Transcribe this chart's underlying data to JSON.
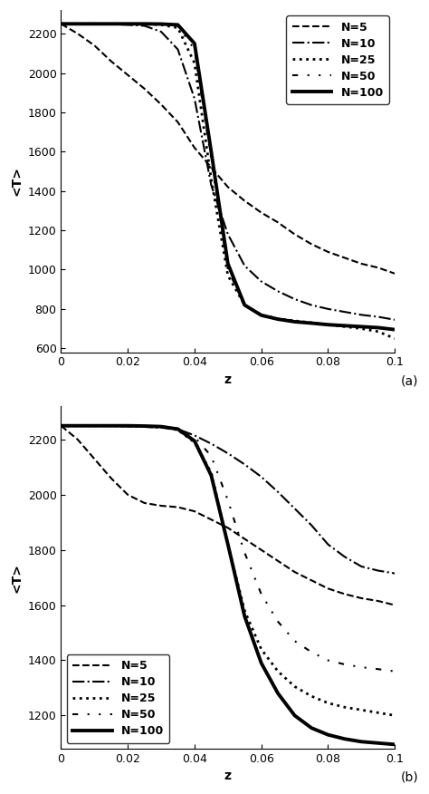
{
  "background_color": "#ffffff",
  "subplots": [
    {
      "label": "(a)",
      "ylabel": "<T>",
      "xlabel": "z",
      "xlim": [
        0,
        0.1
      ],
      "ylim": [
        580,
        2320
      ],
      "yticks": [
        600,
        800,
        1000,
        1200,
        1400,
        1600,
        1800,
        2000,
        2200
      ],
      "xticks": [
        0,
        0.02,
        0.04,
        0.06,
        0.08,
        0.1
      ],
      "legend_loc": "upper right",
      "series": [
        {
          "label": "N=5",
          "style": "dashed",
          "linewidth": 1.5,
          "x": [
            0.0,
            0.005,
            0.01,
            0.015,
            0.02,
            0.025,
            0.03,
            0.035,
            0.04,
            0.045,
            0.05,
            0.055,
            0.06,
            0.065,
            0.07,
            0.075,
            0.08,
            0.085,
            0.09,
            0.095,
            0.1
          ],
          "y": [
            2250,
            2200,
            2140,
            2060,
            1990,
            1920,
            1840,
            1750,
            1620,
            1520,
            1420,
            1350,
            1290,
            1240,
            1180,
            1130,
            1090,
            1060,
            1030,
            1010,
            980
          ]
        },
        {
          "label": "N=10",
          "style": "dashdot",
          "linewidth": 1.5,
          "x": [
            0.0,
            0.005,
            0.01,
            0.015,
            0.02,
            0.025,
            0.03,
            0.035,
            0.04,
            0.045,
            0.05,
            0.055,
            0.06,
            0.065,
            0.07,
            0.075,
            0.08,
            0.085,
            0.09,
            0.095,
            0.1
          ],
          "y": [
            2250,
            2250,
            2250,
            2248,
            2245,
            2240,
            2210,
            2120,
            1870,
            1430,
            1180,
            1020,
            940,
            890,
            850,
            820,
            800,
            785,
            770,
            760,
            745
          ]
        },
        {
          "label": "N=25",
          "style": "dotted",
          "linewidth": 2.0,
          "x": [
            0.0,
            0.005,
            0.01,
            0.015,
            0.02,
            0.025,
            0.03,
            0.035,
            0.04,
            0.045,
            0.05,
            0.055,
            0.06,
            0.065,
            0.07,
            0.075,
            0.08,
            0.085,
            0.09,
            0.095,
            0.1
          ],
          "y": [
            2250,
            2250,
            2250,
            2250,
            2250,
            2249,
            2245,
            2230,
            2050,
            1460,
            970,
            820,
            770,
            750,
            740,
            730,
            720,
            710,
            700,
            685,
            650
          ]
        },
        {
          "label": "N=50",
          "style": "dashdotdotted",
          "linewidth": 1.5,
          "x": [
            0.0,
            0.005,
            0.01,
            0.015,
            0.02,
            0.025,
            0.03,
            0.035,
            0.04,
            0.045,
            0.05,
            0.055,
            0.06,
            0.065,
            0.07,
            0.075,
            0.08,
            0.085,
            0.09,
            0.095,
            0.1
          ],
          "y": [
            2250,
            2250,
            2250,
            2250,
            2250,
            2249,
            2248,
            2240,
            2120,
            1560,
            1000,
            820,
            770,
            750,
            738,
            730,
            720,
            715,
            710,
            705,
            695
          ]
        },
        {
          "label": "N=100",
          "style": "solid",
          "linewidth": 2.8,
          "x": [
            0.0,
            0.005,
            0.01,
            0.015,
            0.02,
            0.025,
            0.03,
            0.035,
            0.04,
            0.045,
            0.05,
            0.055,
            0.06,
            0.065,
            0.07,
            0.075,
            0.08,
            0.085,
            0.09,
            0.095,
            0.1
          ],
          "y": [
            2250,
            2250,
            2250,
            2250,
            2250,
            2250,
            2249,
            2245,
            2150,
            1600,
            1030,
            820,
            768,
            748,
            735,
            728,
            720,
            715,
            710,
            705,
            695
          ]
        }
      ]
    },
    {
      "label": "(b)",
      "ylabel": "<T>",
      "xlabel": "z",
      "xlim": [
        0,
        0.1
      ],
      "ylim": [
        1080,
        2320
      ],
      "yticks": [
        1200,
        1400,
        1600,
        1800,
        2000,
        2200
      ],
      "xticks": [
        0,
        0.02,
        0.04,
        0.06,
        0.08,
        0.1
      ],
      "legend_loc": "lower left",
      "series": [
        {
          "label": "N=5",
          "style": "dashed",
          "linewidth": 1.5,
          "x": [
            0.0,
            0.005,
            0.01,
            0.015,
            0.02,
            0.025,
            0.03,
            0.035,
            0.04,
            0.045,
            0.05,
            0.055,
            0.06,
            0.065,
            0.07,
            0.075,
            0.08,
            0.085,
            0.09,
            0.095,
            0.1
          ],
          "y": [
            2250,
            2200,
            2130,
            2060,
            2000,
            1970,
            1960,
            1955,
            1940,
            1910,
            1880,
            1840,
            1800,
            1760,
            1720,
            1690,
            1660,
            1640,
            1625,
            1615,
            1600
          ]
        },
        {
          "label": "N=10",
          "style": "dashdot",
          "linewidth": 1.5,
          "x": [
            0.0,
            0.005,
            0.01,
            0.015,
            0.02,
            0.025,
            0.03,
            0.035,
            0.04,
            0.045,
            0.05,
            0.055,
            0.06,
            0.065,
            0.07,
            0.075,
            0.08,
            0.085,
            0.09,
            0.095,
            0.1
          ],
          "y": [
            2250,
            2250,
            2250,
            2249,
            2248,
            2246,
            2243,
            2238,
            2215,
            2185,
            2150,
            2110,
            2065,
            2010,
            1950,
            1890,
            1820,
            1775,
            1740,
            1725,
            1715
          ]
        },
        {
          "label": "N=25",
          "style": "dotted",
          "linewidth": 2.0,
          "x": [
            0.0,
            0.005,
            0.01,
            0.015,
            0.02,
            0.025,
            0.03,
            0.035,
            0.04,
            0.045,
            0.05,
            0.055,
            0.06,
            0.065,
            0.07,
            0.075,
            0.08,
            0.085,
            0.09,
            0.095,
            0.1
          ],
          "y": [
            2250,
            2250,
            2250,
            2250,
            2249,
            2248,
            2245,
            2235,
            2190,
            2080,
            1820,
            1580,
            1440,
            1360,
            1305,
            1270,
            1245,
            1230,
            1220,
            1210,
            1200
          ]
        },
        {
          "label": "N=50",
          "style": "dashdotdotted",
          "linewidth": 1.5,
          "x": [
            0.0,
            0.005,
            0.01,
            0.015,
            0.02,
            0.025,
            0.03,
            0.035,
            0.04,
            0.045,
            0.05,
            0.055,
            0.06,
            0.065,
            0.07,
            0.075,
            0.08,
            0.085,
            0.09,
            0.095,
            0.1
          ],
          "y": [
            2250,
            2250,
            2250,
            2250,
            2250,
            2249,
            2247,
            2240,
            2210,
            2140,
            1980,
            1790,
            1640,
            1540,
            1470,
            1430,
            1400,
            1385,
            1375,
            1368,
            1360
          ]
        },
        {
          "label": "N=100",
          "style": "solid",
          "linewidth": 2.8,
          "x": [
            0.0,
            0.005,
            0.01,
            0.015,
            0.02,
            0.025,
            0.03,
            0.035,
            0.04,
            0.045,
            0.05,
            0.055,
            0.06,
            0.065,
            0.07,
            0.075,
            0.08,
            0.085,
            0.09,
            0.095,
            0.1
          ],
          "y": [
            2250,
            2250,
            2250,
            2250,
            2250,
            2249,
            2247,
            2238,
            2195,
            2070,
            1820,
            1560,
            1390,
            1280,
            1200,
            1155,
            1130,
            1115,
            1105,
            1100,
            1095
          ]
        }
      ]
    }
  ]
}
